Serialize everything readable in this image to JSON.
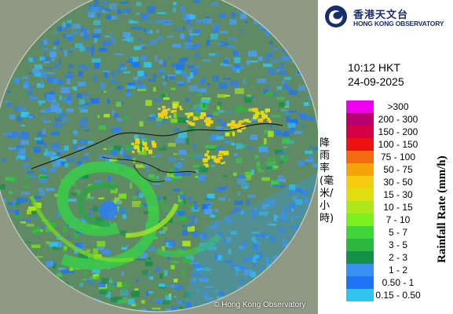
{
  "header": {
    "logo_icon": "hko-swirl-icon",
    "logo_zh": "香港天文台",
    "logo_en": "HONG KONG OBSERVATORY"
  },
  "timestamp": {
    "time": "10:12 HKT",
    "date": "24-09-2025"
  },
  "legend": {
    "title_en": "Rainfall Rate (mm/h)",
    "title_zh": "降雨率(毫米/小時)",
    "items": [
      {
        "label": ">300",
        "color": "#ee00ee"
      },
      {
        "label": "200 - 300",
        "color": "#b8006e"
      },
      {
        "label": "150 - 200",
        "color": "#d40044"
      },
      {
        "label": "100 - 150",
        "color": "#ee1111"
      },
      {
        "label": "75 - 100",
        "color": "#f36b10"
      },
      {
        "label": "50 - 75",
        "color": "#f6a40c"
      },
      {
        "label": "30 - 50",
        "color": "#f5cc10"
      },
      {
        "label": "15 - 30",
        "color": "#dede10"
      },
      {
        "label": "10 - 15",
        "color": "#aee81c"
      },
      {
        "label": "7 - 10",
        "color": "#7cf01e"
      },
      {
        "label": "5 - 7",
        "color": "#3fd43a"
      },
      {
        "label": "3 - 5",
        "color": "#2cb83e"
      },
      {
        "label": "2 - 3",
        "color": "#149048"
      },
      {
        "label": "1 - 2",
        "color": "#3a90f0"
      },
      {
        "label": "0.50 - 1",
        "color": "#1e74f2"
      },
      {
        "label": "0.15 - 0.50",
        "color": "#30c4ee"
      }
    ]
  },
  "map": {
    "credit": "© Hong Kong Observatory"
  }
}
